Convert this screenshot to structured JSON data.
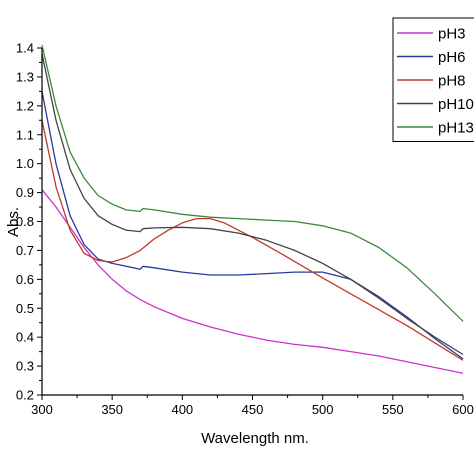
{
  "chart_data": {
    "type": "line",
    "title": "",
    "xlabel": "Wavelength nm.",
    "ylabel": "Abs.",
    "xlim": [
      300,
      600
    ],
    "ylim": [
      0.2,
      1.4
    ],
    "xticks": [
      300,
      350,
      400,
      450,
      500,
      550,
      600
    ],
    "yticks": [
      0.2,
      0.3,
      0.4,
      0.5,
      0.6,
      0.7,
      0.8,
      0.9,
      1.0,
      1.1,
      1.2,
      1.3,
      1.4
    ],
    "grid": false,
    "legend_position": "top-right",
    "series": [
      {
        "name": "pH3",
        "color": "#cc33cc",
        "x": [
          300,
          310,
          320,
          330,
          340,
          350,
          360,
          370,
          380,
          390,
          400,
          420,
          440,
          460,
          480,
          500,
          520,
          540,
          560,
          580,
          600
        ],
        "y": [
          0.91,
          0.85,
          0.78,
          0.71,
          0.65,
          0.6,
          0.56,
          0.53,
          0.505,
          0.485,
          0.465,
          0.435,
          0.41,
          0.39,
          0.375,
          0.365,
          0.35,
          0.335,
          0.315,
          0.295,
          0.275
        ]
      },
      {
        "name": "pH6",
        "color": "#2b3a9a",
        "x": [
          300,
          310,
          320,
          330,
          340,
          350,
          360,
          370,
          372,
          380,
          400,
          420,
          440,
          460,
          480,
          500,
          520,
          540,
          560,
          580,
          600
        ],
        "y": [
          1.25,
          1.0,
          0.82,
          0.72,
          0.67,
          0.655,
          0.645,
          0.635,
          0.645,
          0.64,
          0.625,
          0.615,
          0.615,
          0.62,
          0.625,
          0.625,
          0.6,
          0.54,
          0.47,
          0.395,
          0.325
        ]
      },
      {
        "name": "pH8",
        "color": "#c0392b",
        "x": [
          300,
          310,
          320,
          330,
          340,
          350,
          360,
          370,
          380,
          390,
          400,
          410,
          420,
          430,
          450,
          470,
          500,
          520,
          540,
          560,
          580,
          600
        ],
        "y": [
          1.15,
          0.92,
          0.77,
          0.69,
          0.665,
          0.66,
          0.675,
          0.7,
          0.74,
          0.77,
          0.795,
          0.81,
          0.81,
          0.795,
          0.745,
          0.69,
          0.605,
          0.55,
          0.495,
          0.44,
          0.38,
          0.32
        ]
      },
      {
        "name": "pH10",
        "color": "#444444",
        "x": [
          300,
          310,
          320,
          330,
          340,
          350,
          360,
          370,
          372,
          380,
          400,
          420,
          440,
          460,
          480,
          500,
          520,
          540,
          560,
          580,
          600
        ],
        "y": [
          1.38,
          1.15,
          0.98,
          0.88,
          0.82,
          0.79,
          0.77,
          0.765,
          0.775,
          0.778,
          0.78,
          0.775,
          0.76,
          0.735,
          0.7,
          0.655,
          0.6,
          0.535,
          0.465,
          0.4,
          0.34
        ]
      },
      {
        "name": "pH13",
        "color": "#3a8a3a",
        "x": [
          300,
          310,
          320,
          330,
          340,
          350,
          360,
          370,
          372,
          380,
          400,
          420,
          440,
          460,
          480,
          500,
          520,
          540,
          560,
          580,
          600
        ],
        "y": [
          1.41,
          1.2,
          1.04,
          0.95,
          0.89,
          0.86,
          0.84,
          0.835,
          0.845,
          0.84,
          0.825,
          0.815,
          0.81,
          0.805,
          0.8,
          0.785,
          0.76,
          0.71,
          0.64,
          0.55,
          0.455
        ]
      }
    ]
  }
}
